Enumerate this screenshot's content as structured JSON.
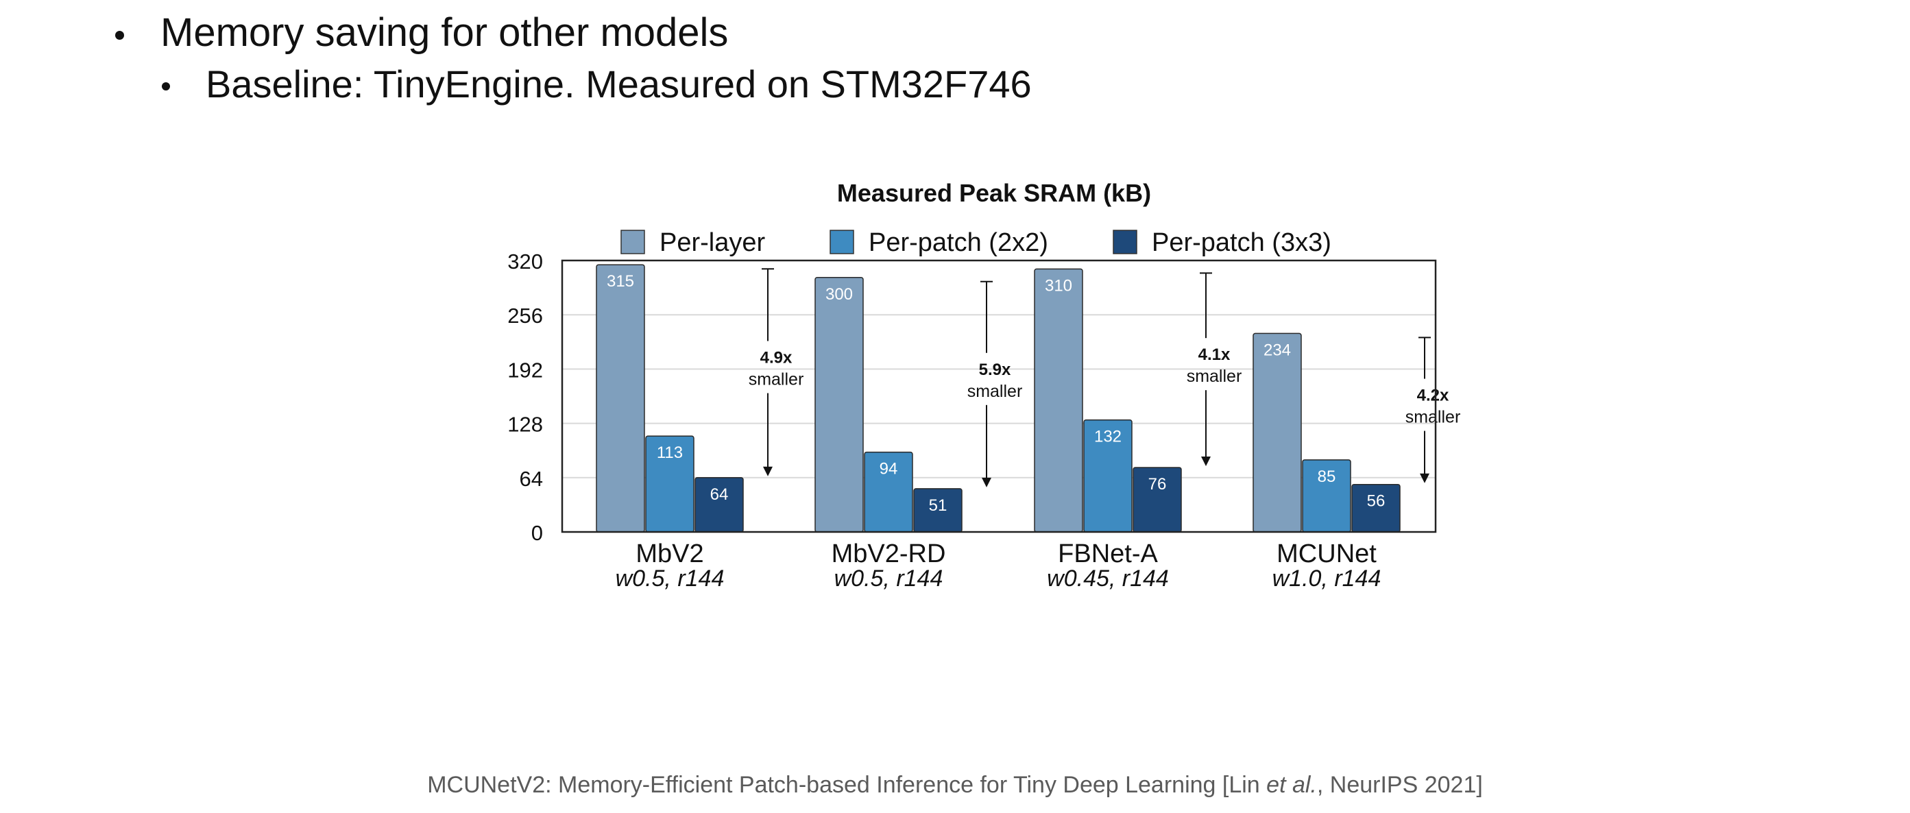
{
  "slide": {
    "bullets": [
      {
        "text": "Memory saving for other models"
      },
      {
        "text": "Baseline: TinyEngine. Measured on STM32F746"
      }
    ],
    "footer": {
      "before": "MCUNetV2: Memory-Efficient Patch-based Inference for Tiny Deep Learning [Lin ",
      "italic": "et al.",
      "after": ", NeurIPS 2021]"
    }
  },
  "colors": {
    "per_layer": "#7f9fbd",
    "per_patch_2x2": "#3e8bc1",
    "per_patch_3x3": "#1e497a",
    "grid": "#d9d9d9",
    "axis": "#222222"
  },
  "chart_data": {
    "type": "bar",
    "title": "Measured Peak SRAM (kB)",
    "legend_position": "top",
    "grid": true,
    "ylim": [
      0,
      320
    ],
    "yticks": [
      0,
      64,
      128,
      192,
      256,
      320
    ],
    "categories": [
      "MbV2",
      "MbV2-RD",
      "FBNet-A",
      "MCUNet"
    ],
    "subcategories": [
      "w0.5, r144",
      "w0.5, r144",
      "w0.45, r144",
      "w1.0, r144"
    ],
    "series": [
      {
        "name": "Per-layer",
        "values": [
          315,
          300,
          310,
          234
        ]
      },
      {
        "name": "Per-patch (2x2)",
        "values": [
          113,
          94,
          132,
          85
        ]
      },
      {
        "name": "Per-patch (3x3)",
        "values": [
          64,
          51,
          76,
          56
        ]
      }
    ],
    "annotations": [
      {
        "ratio": "4.9x",
        "label": "smaller"
      },
      {
        "ratio": "5.9x",
        "label": "smaller"
      },
      {
        "ratio": "4.1x",
        "label": "smaller"
      },
      {
        "ratio": "4.2x",
        "label": "smaller"
      }
    ]
  }
}
